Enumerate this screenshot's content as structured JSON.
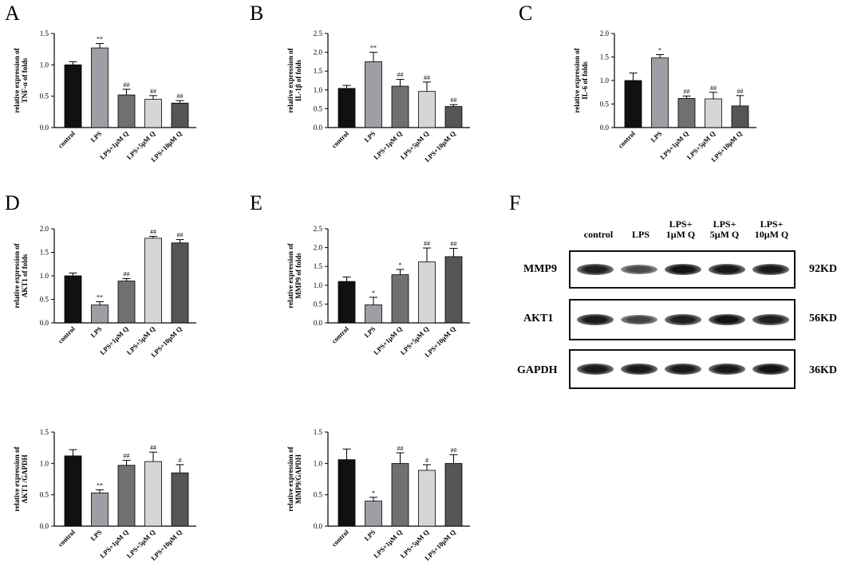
{
  "panels": [
    {
      "letter": "A"
    },
    {
      "letter": "B"
    },
    {
      "letter": "C"
    },
    {
      "letter": "D"
    },
    {
      "letter": "E"
    },
    {
      "letter": "F"
    }
  ],
  "chart_data": [
    {
      "id": "A",
      "type": "bar",
      "categories": [
        "control",
        "LPS",
        "LPS+1μM Q",
        "LPS+5μM Q",
        "LPS+10μM Q"
      ],
      "values": [
        1.0,
        1.27,
        0.52,
        0.45,
        0.39
      ],
      "errors": [
        0.05,
        0.07,
        0.09,
        0.06,
        0.04
      ],
      "annotations": [
        "",
        "**",
        "##",
        "##",
        "##"
      ],
      "ylabel_line1": "relative expression of",
      "ylabel_line2": "TNF-α of folds",
      "ylim": [
        0,
        1.5
      ],
      "yticks": [
        "0.0",
        "0.5",
        "1.0",
        "1.5"
      ],
      "tick_values": [
        0,
        0.5,
        1.0,
        1.5
      ]
    },
    {
      "id": "B",
      "type": "bar",
      "categories": [
        "control",
        "LPS",
        "LPS+1μM Q",
        "LPS+5μM Q",
        "LPS+10μM Q"
      ],
      "values": [
        1.04,
        1.75,
        1.1,
        0.96,
        0.56
      ],
      "errors": [
        0.08,
        0.25,
        0.18,
        0.25,
        0.05
      ],
      "annotations": [
        "",
        "**",
        "##",
        "##",
        "##"
      ],
      "ylabel_line1": "relative expression of",
      "ylabel_line2": "IL-1β of folds",
      "ylim": [
        0,
        2.5
      ],
      "yticks": [
        "0.0",
        "0.5",
        "1.0",
        "1.5",
        "2.0",
        "2.5"
      ],
      "tick_values": [
        0,
        0.5,
        1.0,
        1.5,
        2.0,
        2.5
      ]
    },
    {
      "id": "C",
      "type": "bar",
      "categories": [
        "control",
        "LPS",
        "LPS+1μM Q",
        "LPS+5μM Q",
        "LPS+10μM Q"
      ],
      "values": [
        1.0,
        1.48,
        0.62,
        0.61,
        0.46
      ],
      "errors": [
        0.16,
        0.07,
        0.05,
        0.14,
        0.22
      ],
      "annotations": [
        "",
        "*",
        "##",
        "##",
        "##"
      ],
      "ylabel_line1": "relative expression of",
      "ylabel_line2": "IL-6 of folds",
      "ylim": [
        0,
        2.0
      ],
      "yticks": [
        "0.0",
        "0.5",
        "1.0",
        "1.5",
        "2.0"
      ],
      "tick_values": [
        0,
        0.5,
        1.0,
        1.5,
        2.0
      ]
    },
    {
      "id": "D",
      "type": "bar",
      "categories": [
        "control",
        "LPS",
        "LPS+1μM Q",
        "LPS+5μM Q",
        "LPS+10μM Q"
      ],
      "values": [
        1.0,
        0.38,
        0.89,
        1.8,
        1.7
      ],
      "errors": [
        0.06,
        0.07,
        0.05,
        0.04,
        0.07
      ],
      "annotations": [
        "",
        "**",
        "##",
        "##",
        "##"
      ],
      "ylabel_line1": "relative expression of",
      "ylabel_line2": "AKT1 of folds",
      "ylim": [
        0,
        2.0
      ],
      "yticks": [
        "0.0",
        "0.5",
        "1.0",
        "1.5",
        "2.0"
      ],
      "tick_values": [
        0,
        0.5,
        1.0,
        1.5,
        2.0
      ]
    },
    {
      "id": "E",
      "type": "bar",
      "categories": [
        "control",
        "LPS",
        "LPS+1μM Q",
        "LPS+5μM Q",
        "LPS+10μM Q"
      ],
      "values": [
        1.1,
        0.48,
        1.28,
        1.62,
        1.76
      ],
      "errors": [
        0.12,
        0.2,
        0.14,
        0.37,
        0.22
      ],
      "annotations": [
        "",
        "*",
        "*",
        "##",
        "##"
      ],
      "ylabel_line1": "relative expression of",
      "ylabel_line2": "MMP9 of folds",
      "ylim": [
        0,
        2.5
      ],
      "yticks": [
        "0.0",
        "0.5",
        "1.0",
        "1.5",
        "2.0",
        "2.5"
      ],
      "tick_values": [
        0,
        0.5,
        1.0,
        1.5,
        2.0,
        2.5
      ]
    },
    {
      "id": "G",
      "type": "bar",
      "categories": [
        "control",
        "LPS",
        "LPS+1μM Q",
        "LPS+5μM Q",
        "LPS+10μM Q"
      ],
      "values": [
        1.12,
        0.53,
        0.97,
        1.03,
        0.85
      ],
      "errors": [
        0.1,
        0.05,
        0.08,
        0.15,
        0.13
      ],
      "annotations": [
        "",
        "**",
        "##",
        "##",
        "#"
      ],
      "ylabel_line1": "relative expression of",
      "ylabel_line2": "AKT1 /GAPDH",
      "ylim": [
        0,
        1.5
      ],
      "yticks": [
        "0.0",
        "0.5",
        "1.0",
        "1.5"
      ],
      "tick_values": [
        0,
        0.5,
        1.0,
        1.5
      ]
    },
    {
      "id": "H",
      "type": "bar",
      "categories": [
        "control",
        "LPS",
        "LPS+1μM Q",
        "LPS+5μM Q",
        "LPS+10μM Q"
      ],
      "values": [
        1.06,
        0.4,
        1.0,
        0.89,
        1.0
      ],
      "errors": [
        0.17,
        0.06,
        0.17,
        0.09,
        0.14
      ],
      "annotations": [
        "",
        "*",
        "##",
        "#",
        "##"
      ],
      "ylabel_line1": "relative expression of",
      "ylabel_line2": "MMP9/GAPDH",
      "ylim": [
        0,
        1.5
      ],
      "yticks": [
        "0.0",
        "0.5",
        "1.0",
        "1.5"
      ],
      "tick_values": [
        0,
        0.5,
        1.0,
        1.5
      ]
    }
  ],
  "bar_colors": [
    "#111111",
    "#9e9ea6",
    "#707070",
    "#d6d6d6",
    "#555555"
  ],
  "western_blot": {
    "columns": [
      "control",
      "LPS",
      "LPS+\n1μM Q",
      "LPS+\n5μM Q",
      "LPS+\n10μM Q"
    ],
    "rows": [
      {
        "protein": "MMP9",
        "kd": "92KD",
        "intensity": [
          0.9,
          0.55,
          1.0,
          0.95,
          0.95
        ]
      },
      {
        "protein": "AKT1",
        "kd": "56KD",
        "intensity": [
          0.95,
          0.6,
          0.9,
          1.0,
          0.9
        ]
      },
      {
        "protein": "GAPDH",
        "kd": "36KD",
        "intensity": [
          0.95,
          0.95,
          0.95,
          0.95,
          1.0
        ]
      }
    ]
  }
}
